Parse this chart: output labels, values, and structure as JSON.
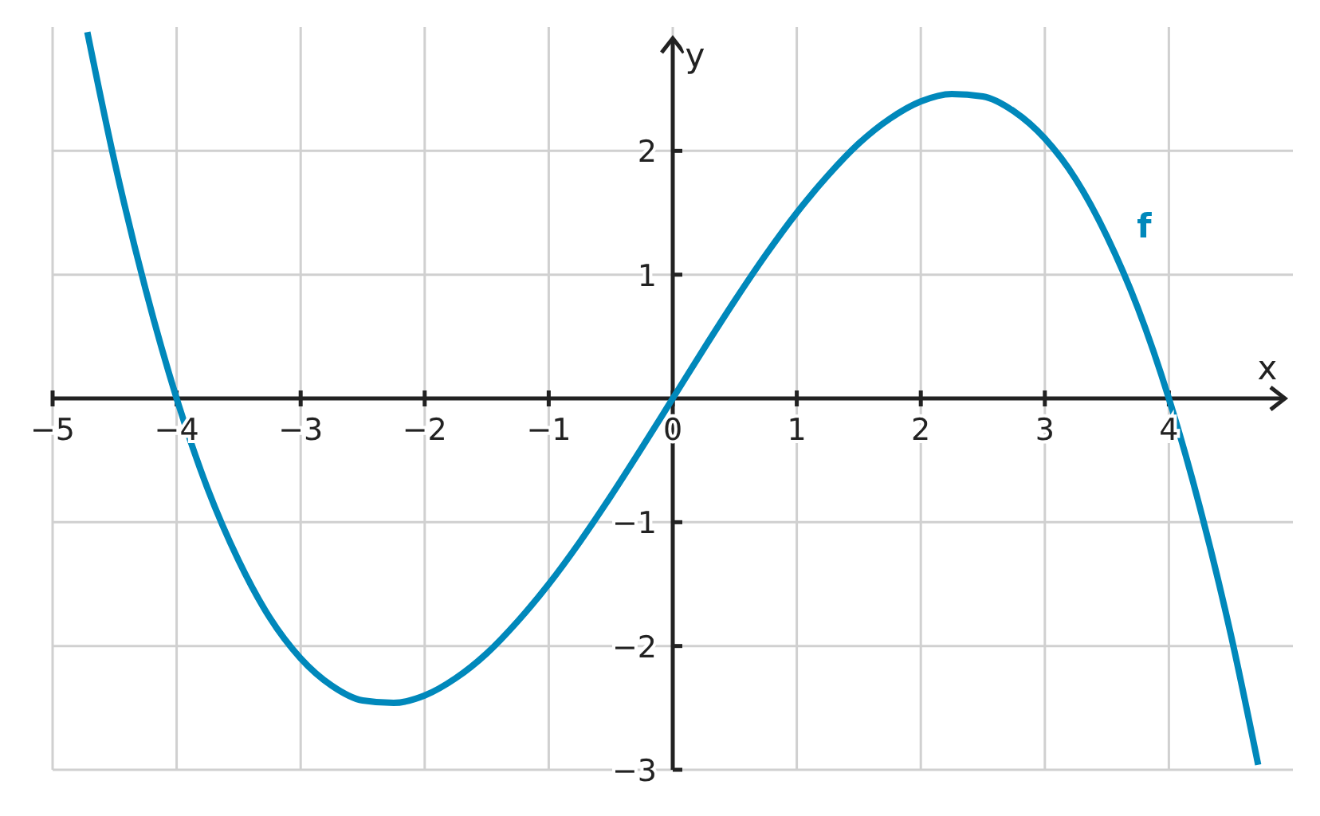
{
  "chart_data": {
    "type": "line",
    "xlabel": "x",
    "ylabel": "y",
    "xlim": [
      -5,
      5
    ],
    "ylim": [
      -3,
      3
    ],
    "xticks": [
      {
        "value": -5,
        "label": "−5"
      },
      {
        "value": -4,
        "label": "−4"
      },
      {
        "value": -3,
        "label": "−3"
      },
      {
        "value": -2,
        "label": "−2"
      },
      {
        "value": -1,
        "label": "−1"
      },
      0,
      1,
      2,
      3,
      4
    ],
    "yticks": [
      {
        "value": -3,
        "label": "−3"
      },
      {
        "value": -2,
        "label": "−2"
      },
      {
        "value": -1,
        "label": "−1"
      },
      1,
      2
    ],
    "grid": true,
    "marker": "none",
    "line_style": "solid",
    "series": [
      {
        "name": "f",
        "color": "#0088bb",
        "x": [
          -4.72,
          -4.5,
          -4.25,
          -4,
          -3.75,
          -3.5,
          -3.25,
          -3,
          -2.75,
          -2.5,
          -2.25,
          -2,
          -1.75,
          -1.5,
          -1.25,
          -1,
          -0.75,
          -0.5,
          -0.25,
          0,
          0.25,
          0.5,
          0.75,
          1,
          1.25,
          1.5,
          1.75,
          2,
          2.25,
          2.5,
          2.75,
          3,
          3.25,
          3.5,
          3.75,
          4,
          4.25,
          4.5,
          4.72
        ],
        "values": [
          2.96,
          1.91,
          0.88,
          0,
          -0.73,
          -1.31,
          -1.77,
          -2.1,
          -2.32,
          -2.44,
          -2.46,
          -2.4,
          -2.26,
          -2.06,
          -1.8,
          -1.5,
          -1.16,
          -0.79,
          -0.4,
          0,
          0.4,
          0.79,
          1.16,
          1.5,
          1.8,
          2.06,
          2.26,
          2.4,
          2.46,
          2.44,
          2.32,
          2.1,
          1.77,
          1.31,
          0.73,
          0,
          -0.88,
          -1.91,
          -2.96
        ]
      }
    ]
  }
}
